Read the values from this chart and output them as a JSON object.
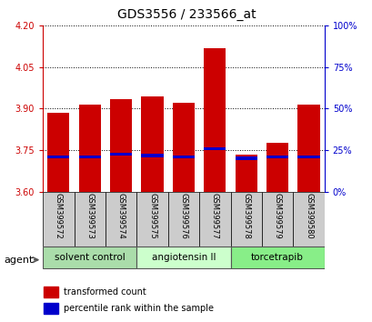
{
  "title": "GDS3556 / 233566_at",
  "samples": [
    "GSM399572",
    "GSM399573",
    "GSM399574",
    "GSM399575",
    "GSM399576",
    "GSM399577",
    "GSM399578",
    "GSM399579",
    "GSM399580"
  ],
  "red_values": [
    3.885,
    3.915,
    3.935,
    3.945,
    3.92,
    4.12,
    3.735,
    3.775,
    3.915
  ],
  "blue_values": [
    3.725,
    3.725,
    3.735,
    3.73,
    3.725,
    3.755,
    3.72,
    3.725,
    3.725
  ],
  "ymin": 3.6,
  "ymax": 4.2,
  "yticks_left": [
    3.6,
    3.75,
    3.9,
    4.05,
    4.2
  ],
  "yticks_right": [
    0,
    25,
    50,
    75,
    100
  ],
  "groups": [
    {
      "label": "solvent control",
      "indices": [
        0,
        1,
        2
      ],
      "color": "#aaddaa"
    },
    {
      "label": "angiotensin II",
      "indices": [
        3,
        4,
        5
      ],
      "color": "#ccffcc"
    },
    {
      "label": "torcetrapib",
      "indices": [
        6,
        7,
        8
      ],
      "color": "#88ee88"
    }
  ],
  "agent_label": "agent",
  "bar_width": 0.7,
  "red_color": "#cc0000",
  "blue_color": "#0000cc",
  "base": 3.6,
  "left_axis_color": "#cc0000",
  "right_axis_color": "#0000cc",
  "bg_color": "#ffffff",
  "plot_bg_color": "#ffffff",
  "sample_box_color": "#cccccc",
  "title_fontsize": 10,
  "tick_fontsize": 7,
  "label_fontsize": 6,
  "group_fontsize": 7.5,
  "legend_fontsize": 7,
  "agent_fontsize": 8
}
